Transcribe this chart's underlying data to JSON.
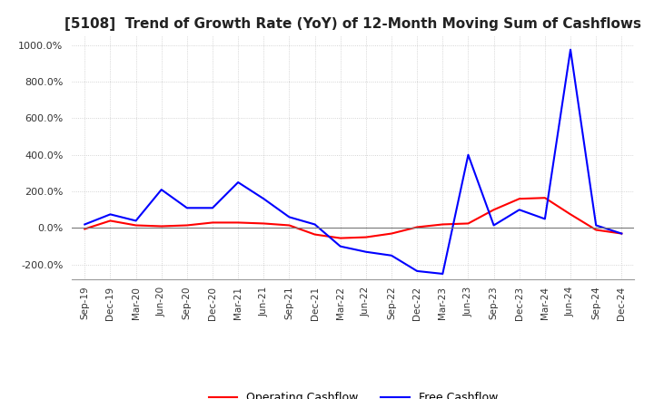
{
  "title": "[5108]  Trend of Growth Rate (YoY) of 12-Month Moving Sum of Cashflows",
  "title_fontsize": 11,
  "ylim": [
    -280,
    1050
  ],
  "yticks": [
    -200,
    0,
    200,
    400,
    600,
    800,
    1000
  ],
  "ytick_labels": [
    "-200.0%",
    "0.0%",
    "200.0%",
    "400.0%",
    "600.0%",
    "800.0%",
    "1000.0%"
  ],
  "x_labels": [
    "Sep-19",
    "Dec-19",
    "Mar-20",
    "Jun-20",
    "Sep-20",
    "Dec-20",
    "Mar-21",
    "Jun-21",
    "Sep-21",
    "Dec-21",
    "Mar-22",
    "Jun-22",
    "Sep-22",
    "Dec-22",
    "Mar-23",
    "Jun-23",
    "Sep-23",
    "Dec-23",
    "Mar-24",
    "Jun-24",
    "Sep-24",
    "Dec-24"
  ],
  "operating_cashflow": [
    -5,
    40,
    15,
    10,
    15,
    30,
    30,
    25,
    15,
    -35,
    -55,
    -50,
    -30,
    5,
    20,
    25,
    100,
    160,
    165,
    75,
    -10,
    -30
  ],
  "free_cashflow": [
    20,
    75,
    40,
    210,
    110,
    110,
    250,
    160,
    60,
    20,
    -100,
    -130,
    -150,
    -235,
    -250,
    400,
    15,
    100,
    50,
    975,
    15,
    -30
  ],
  "op_color": "#ff0000",
  "free_color": "#0000ff",
  "grid_color": "#c8c8c8",
  "bg_color": "#ffffff",
  "line_width": 1.5
}
